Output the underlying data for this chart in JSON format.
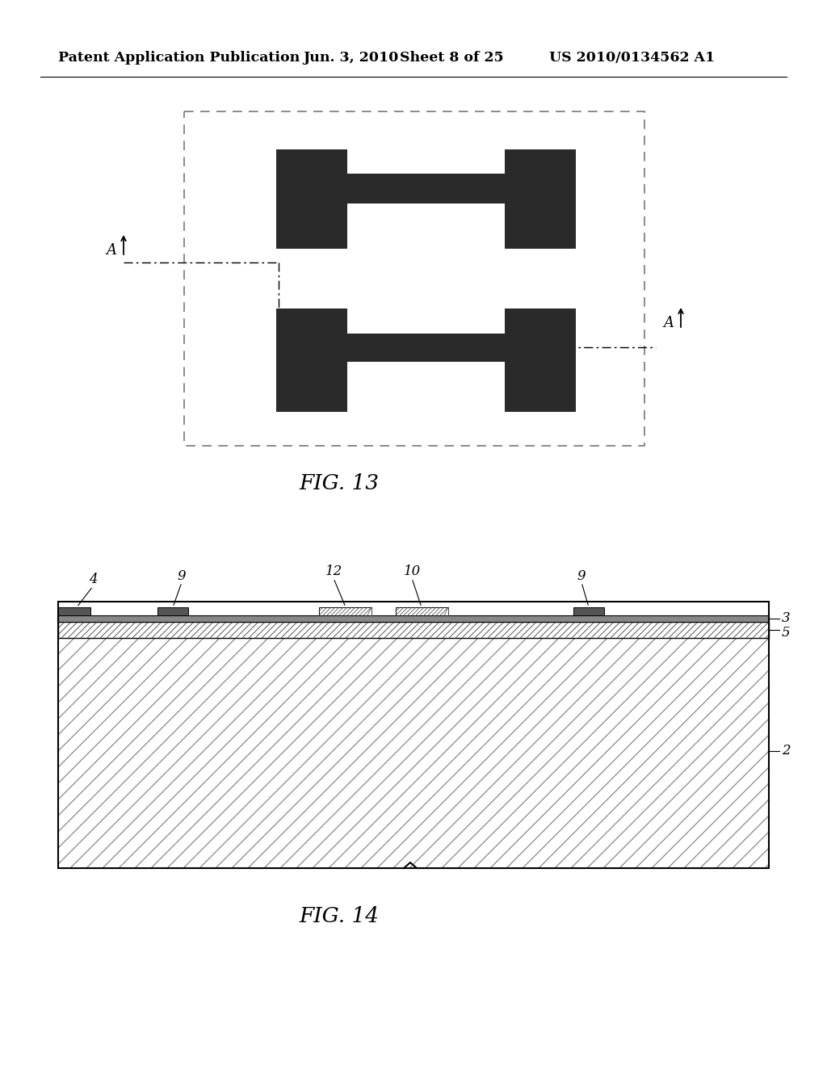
{
  "bg_color": "#ffffff",
  "header_text": "Patent Application Publication",
  "header_date": "Jun. 3, 2010",
  "header_sheet": "Sheet 8 of 25",
  "header_patent": "US 2010/0134562 A1",
  "fig13_label": "FIG. 13",
  "fig14_label": "FIG. 14",
  "dark_color": "#2a2a2a",
  "line_color": "#000000"
}
